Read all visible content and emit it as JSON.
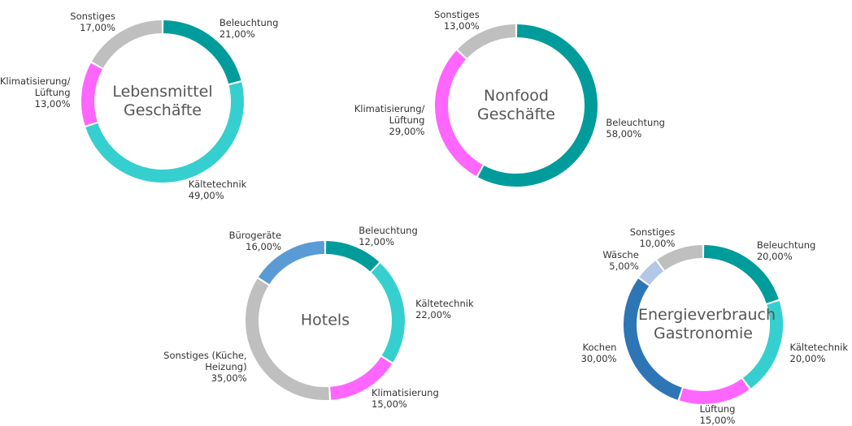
{
  "chart_data": [
    {
      "type": "donut",
      "title": "Lebensmittel Geschäfte",
      "categories": [
        "Beleuchtung",
        "Kältetechnik",
        "Klimatisierung/ Lüftung",
        "Sonstiges"
      ],
      "values": [
        21,
        49,
        13,
        17
      ],
      "value_labels": [
        "21,00%",
        "49,00%",
        "13,00%",
        "17,00%"
      ],
      "colors": [
        "#009b9b",
        "#36cfcf",
        "#ff66ff",
        "#bfbfbf"
      ]
    },
    {
      "type": "donut",
      "title": "Nonfood Geschäfte",
      "categories": [
        "Beleuchtung",
        "Klimatisierung/ Lüftung",
        "Sonstiges"
      ],
      "values": [
        58,
        29,
        13
      ],
      "value_labels": [
        "58,00%",
        "29,00%",
        "13,00%"
      ],
      "colors": [
        "#009b9b",
        "#ff66ff",
        "#bfbfbf"
      ]
    },
    {
      "type": "donut",
      "title": "Hotels",
      "categories": [
        "Beleuchtung",
        "Kältetechnik",
        "Klimatisierung",
        "Sonstiges (Küche, Heizung)",
        "Bürogeräte"
      ],
      "values": [
        12,
        22,
        15,
        35,
        16
      ],
      "value_labels": [
        "12,00%",
        "22,00%",
        "15,00%",
        "35,00%",
        "16,00%"
      ],
      "colors": [
        "#009b9b",
        "#36cfcf",
        "#ff66ff",
        "#bfbfbf",
        "#5b9bd5"
      ]
    },
    {
      "type": "donut",
      "title": "Energieverbrauch Gastronomie",
      "categories": [
        "Beleuchtung",
        "Kältetechnik",
        "Lüftung",
        "Kochen",
        "Wäsche",
        "Sonstiges"
      ],
      "values": [
        20,
        20,
        15,
        30,
        5,
        10
      ],
      "value_labels": [
        "20,00%",
        "20,00%",
        "15,00%",
        "30,00%",
        "5,00%",
        "10,00%"
      ],
      "colors": [
        "#009b9b",
        "#36cfcf",
        "#ff66ff",
        "#2e75b6",
        "#b4c7e7",
        "#bfbfbf"
      ]
    }
  ]
}
